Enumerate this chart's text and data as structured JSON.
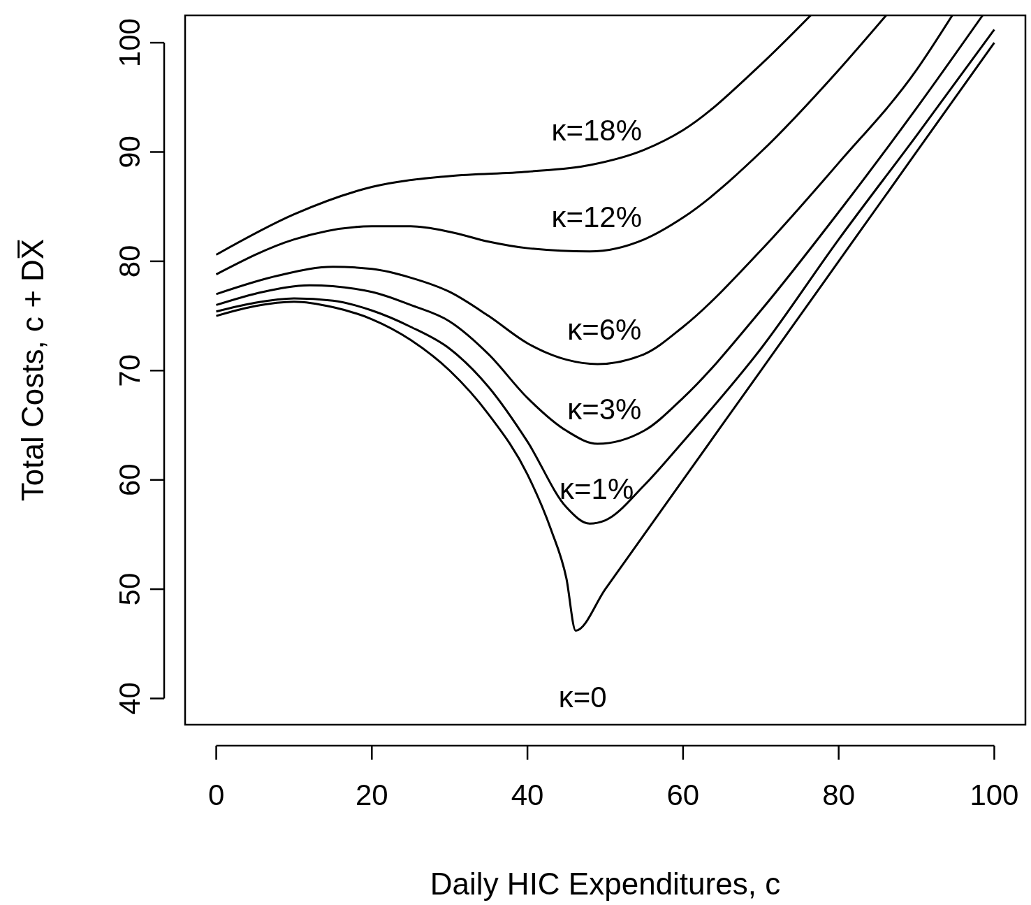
{
  "chart_data": {
    "type": "line",
    "xlabel": "Daily HIC Expenditures, c",
    "ylabel": "Total Costs, c + DX̅",
    "xlim": [
      -4,
      104
    ],
    "ylim": [
      37.6,
      102.5
    ],
    "xticks": [
      0,
      20,
      40,
      60,
      80,
      100
    ],
    "yticks": [
      40,
      50,
      60,
      70,
      80,
      90,
      100
    ],
    "grid": false,
    "line_style": "solid",
    "series": [
      {
        "name": "κ=0",
        "color": "#000000",
        "x": [
          0,
          5,
          10,
          15,
          20,
          25,
          30,
          35,
          40,
          43,
          45,
          46.2,
          50,
          55,
          60,
          70,
          80,
          90,
          100
        ],
        "values": [
          75,
          75.9,
          76.3,
          75.8,
          74.7,
          72.8,
          70,
          66,
          60.5,
          55.5,
          51,
          46.2,
          50,
          55,
          60,
          70,
          80,
          90,
          100
        ]
      },
      {
        "name": "κ=1%",
        "color": "#000000",
        "x": [
          0,
          5,
          10,
          15,
          20,
          25,
          30,
          35,
          40,
          45,
          48,
          50,
          55,
          60,
          70,
          80,
          90,
          100
        ],
        "values": [
          75.4,
          76.2,
          76.6,
          76.4,
          75.5,
          74,
          72,
          68.5,
          63.5,
          57.5,
          56,
          56.3,
          59.5,
          63.5,
          72,
          82,
          91.5,
          101.2
        ]
      },
      {
        "name": "κ=3%",
        "color": "#000000",
        "x": [
          0,
          6,
          12,
          20,
          25,
          30,
          35,
          40,
          45,
          49,
          55,
          60,
          70,
          80,
          90,
          98.5
        ],
        "values": [
          76,
          77.2,
          77.8,
          77.2,
          76,
          74.5,
          71.5,
          67.5,
          64.5,
          63.3,
          64.5,
          67.5,
          75.5,
          84.5,
          94,
          102.5
        ]
      },
      {
        "name": "κ=6%",
        "color": "#000000",
        "x": [
          0,
          8,
          15,
          20,
          25,
          30,
          35,
          40,
          45,
          49,
          55,
          60,
          70,
          80,
          90,
          94.6
        ],
        "values": [
          77,
          78.7,
          79.5,
          79.3,
          78.5,
          77.2,
          75,
          72.5,
          71,
          70.6,
          71.5,
          74,
          81,
          89,
          97.5,
          102.5
        ]
      },
      {
        "name": "κ=12%",
        "color": "#000000",
        "x": [
          0,
          10,
          20,
          25,
          30,
          35,
          40,
          48,
          55,
          60,
          70,
          80,
          86.1
        ],
        "values": [
          78.8,
          82,
          83.2,
          83.2,
          82.7,
          81.8,
          81.2,
          80.9,
          82,
          84,
          90,
          97.5,
          102.5
        ]
      },
      {
        "name": "κ=18%",
        "color": "#000000",
        "x": [
          0,
          10,
          20,
          30,
          40,
          48,
          55,
          60,
          70,
          76.4
        ],
        "values": [
          80.6,
          84.3,
          86.8,
          87.8,
          88.2,
          88.8,
          90.2,
          92,
          98,
          102.5
        ]
      }
    ]
  }
}
